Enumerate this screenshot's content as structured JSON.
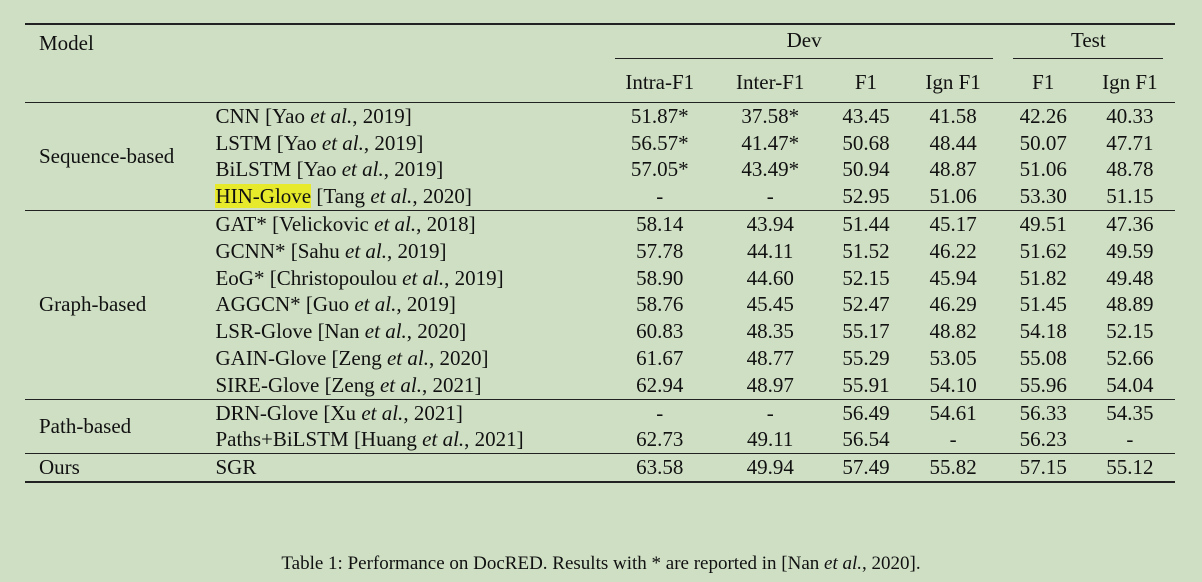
{
  "header": {
    "model": "Model",
    "dev": "Dev",
    "test": "Test",
    "cols": [
      "Intra-F1",
      "Inter-F1",
      "F1",
      "Ign F1",
      "F1",
      "Ign F1"
    ]
  },
  "sections": [
    {
      "group": "Sequence-based",
      "rows": [
        {
          "name": "CNN",
          "cite_pre": "[Yao ",
          "cite_it": "et al.",
          "cite_post": ", 2019]",
          "vals": [
            "51.87*",
            "37.58*",
            "43.45",
            "41.58",
            "42.26",
            "40.33"
          ]
        },
        {
          "name": "LSTM",
          "cite_pre": "[Yao ",
          "cite_it": "et al.",
          "cite_post": ", 2019]",
          "vals": [
            "56.57*",
            "41.47*",
            "50.68",
            "48.44",
            "50.07",
            "47.71"
          ]
        },
        {
          "name": "BiLSTM",
          "cite_pre": "[Yao ",
          "cite_it": "et al.",
          "cite_post": ", 2019]",
          "vals": [
            "57.05*",
            "43.49*",
            "50.94",
            "48.87",
            "51.06",
            "48.78"
          ]
        },
        {
          "name": "HIN-Glove",
          "highlight": true,
          "cite_pre": "[Tang ",
          "cite_it": "et al.",
          "cite_post": ", 2020]",
          "vals": [
            "-",
            "-",
            "52.95",
            "51.06",
            "53.30",
            "51.15"
          ]
        }
      ]
    },
    {
      "group": "Graph-based",
      "rows": [
        {
          "name": "GAT*",
          "cite_pre": "[Velickovic ",
          "cite_it": "et al.",
          "cite_post": ", 2018]",
          "vals": [
            "58.14",
            "43.94",
            "51.44",
            "45.17",
            "49.51",
            "47.36"
          ]
        },
        {
          "name": "GCNN*",
          "cite_pre": "[Sahu ",
          "cite_it": "et al.",
          "cite_post": ", 2019]",
          "vals": [
            "57.78",
            "44.11",
            "51.52",
            "46.22",
            "51.62",
            "49.59"
          ]
        },
        {
          "name": "EoG*",
          "cite_pre": "[Christopoulou ",
          "cite_it": "et al.",
          "cite_post": ", 2019]",
          "vals": [
            "58.90",
            "44.60",
            "52.15",
            "45.94",
            "51.82",
            "49.48"
          ]
        },
        {
          "name": "AGGCN*",
          "cite_pre": "[Guo ",
          "cite_it": "et al.",
          "cite_post": ", 2019]",
          "vals": [
            "58.76",
            "45.45",
            "52.47",
            "46.29",
            "51.45",
            "48.89"
          ]
        },
        {
          "name": "LSR-Glove",
          "cite_pre": "[Nan ",
          "cite_it": "et al.",
          "cite_post": ", 2020]",
          "vals": [
            "60.83",
            "48.35",
            "55.17",
            "48.82",
            "54.18",
            "52.15"
          ]
        },
        {
          "name": "GAIN-Glove",
          "cite_pre": "[Zeng ",
          "cite_it": "et al.",
          "cite_post": ", 2020]",
          "vals": [
            "61.67",
            "48.77",
            "55.29",
            "53.05",
            "55.08",
            "52.66"
          ]
        },
        {
          "name": "SIRE-Glove",
          "cite_pre": "[Zeng ",
          "cite_it": "et al.",
          "cite_post": ", 2021]",
          "vals": [
            "62.94",
            "48.97",
            "55.91",
            "54.10",
            "55.96",
            "54.04"
          ]
        }
      ]
    },
    {
      "group": "Path-based",
      "rows": [
        {
          "name": "DRN-Glove",
          "cite_pre": "[Xu ",
          "cite_it": "et al.",
          "cite_post": ", 2021]",
          "vals": [
            "-",
            "-",
            "56.49",
            "54.61",
            "56.33",
            "54.35"
          ]
        },
        {
          "name": "Paths+BiLSTM",
          "cite_pre": "[Huang ",
          "cite_it": "et al.",
          "cite_post": ", 2021]",
          "vals": [
            "62.73",
            "49.11",
            "56.54",
            "-",
            "56.23",
            "-"
          ]
        }
      ]
    },
    {
      "group": "Ours",
      "bold": true,
      "rows": [
        {
          "name": "SGR",
          "cite_pre": "",
          "cite_it": "",
          "cite_post": "",
          "vals": [
            "63.58",
            "49.94",
            "57.49",
            "55.82",
            "57.15",
            "55.12"
          ]
        }
      ]
    }
  ],
  "caption": {
    "pre": "Table 1: Performance on DocRED. Results with * are reported in [Nan ",
    "it": "et al.",
    "post": ", 2020]."
  }
}
